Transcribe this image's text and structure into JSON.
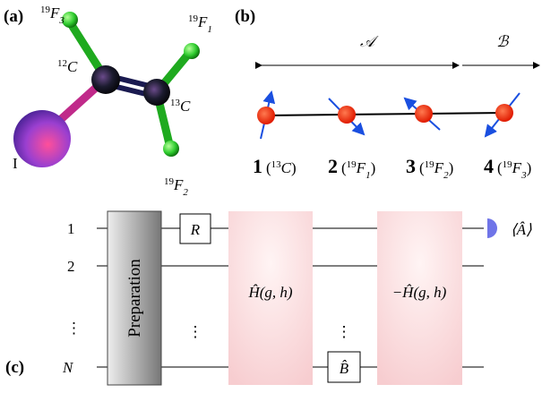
{
  "panel_a": {
    "label": "(a)",
    "atoms": [
      {
        "mass": "19",
        "element": "F",
        "sub": "3"
      },
      {
        "mass": "19",
        "element": "F",
        "sub": "1"
      },
      {
        "mass": "12",
        "element": "C"
      },
      {
        "mass": "13",
        "element": "C"
      },
      {
        "mass": "19",
        "element": "F",
        "sub": "2"
      }
    ],
    "iodine": "I"
  },
  "panel_b": {
    "label": "(b)",
    "regions": [
      "𝒜",
      "ℬ"
    ],
    "spins": [
      {
        "index": "1",
        "open": "(",
        "mass": "13",
        "element": "C",
        "close": ")"
      },
      {
        "index": "2",
        "open": "(",
        "mass": "19",
        "element": "F",
        "sub": "1",
        "close": ")"
      },
      {
        "index": "3",
        "open": "(",
        "mass": "19",
        "element": "F",
        "sub": "2",
        "close": ")"
      },
      {
        "index": "4",
        "open": "(",
        "mass": "19",
        "element": "F",
        "sub": "3",
        "close": ")"
      }
    ]
  },
  "panel_c": {
    "label": "(c)",
    "qubits": [
      "1",
      "2",
      "⋮",
      "N"
    ],
    "gates": {
      "preparation": "Preparation",
      "rotation": "R",
      "dots1": "⋮",
      "evolution": "Ĥ(g, h)",
      "dots2": "⋮",
      "local": "B̂",
      "reverse": "−Ĥ(g, h)"
    },
    "readout": "⟨Â⟩"
  }
}
